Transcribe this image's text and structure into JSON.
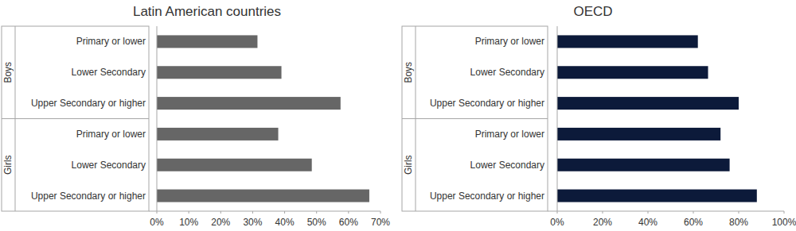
{
  "chart_data": [
    {
      "type": "bar",
      "title": "Latin American countries",
      "orientation": "horizontal",
      "grid": false,
      "color": "#666666",
      "categories": [
        "Primary or lower",
        "Lower Secondary",
        "Upper Secondary or higher"
      ],
      "series": [
        {
          "name": "Boys",
          "values": [
            31.5,
            39,
            57.5
          ]
        },
        {
          "name": "Girls",
          "values": [
            38,
            48.5,
            66.5
          ]
        }
      ],
      "xlim": [
        0,
        70
      ],
      "xticks": [
        {
          "value": 0,
          "label": "0%"
        },
        {
          "value": 10,
          "label": "10%"
        },
        {
          "value": 20,
          "label": "20%"
        },
        {
          "value": 30,
          "label": "30%"
        },
        {
          "value": 40,
          "label": "40%"
        },
        {
          "value": 50,
          "label": "50%"
        },
        {
          "value": 60,
          "label": "60%"
        },
        {
          "value": 70,
          "label": "70%"
        }
      ]
    },
    {
      "type": "bar",
      "title": "OECD",
      "orientation": "horizontal",
      "grid": false,
      "color": "#0c1a3a",
      "categories": [
        "Primary or lower",
        "Lower Secondary",
        "Upper Secondary or higher"
      ],
      "series": [
        {
          "name": "Boys",
          "values": [
            62,
            66.5,
            80
          ]
        },
        {
          "name": "Girls",
          "values": [
            72,
            76,
            88
          ]
        }
      ],
      "xlim": [
        0,
        100
      ],
      "xticks": [
        {
          "value": 0,
          "label": "0%"
        },
        {
          "value": 20,
          "label": "20%"
        },
        {
          "value": 40,
          "label": "40%"
        },
        {
          "value": 60,
          "label": "60%"
        },
        {
          "value": 80,
          "label": "80%"
        },
        {
          "value": 100,
          "label": "100%"
        }
      ]
    }
  ]
}
